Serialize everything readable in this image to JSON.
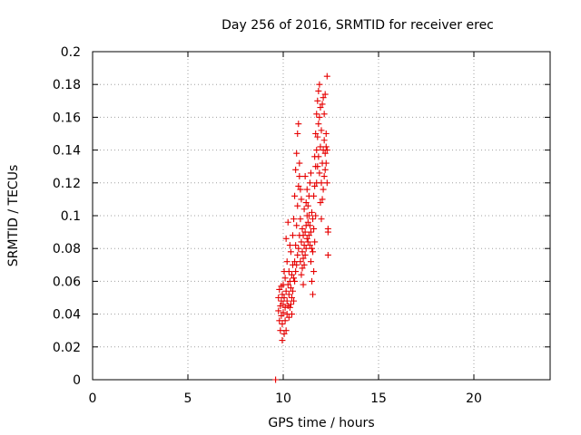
{
  "chart_data": {
    "type": "scatter",
    "title": "Day 256 of 2016, SRMTID for receiver erec",
    "xlabel": "GPS time / hours",
    "ylabel": "SRMTID / TECUs",
    "xlim": [
      0,
      24
    ],
    "ylim": [
      0,
      0.2
    ],
    "x_ticks": [
      "0",
      "5",
      "10",
      "15",
      "20"
    ],
    "y_ticks": [
      "0",
      "0.02",
      "0.04",
      "0.06",
      "0.08",
      "0.1",
      "0.12",
      "0.14",
      "0.16",
      "0.18",
      "0.2"
    ],
    "grid": true,
    "marker": "+",
    "color": "#e60000",
    "series": [
      {
        "points": [
          [
            9.6,
            0.0
          ],
          [
            9.75,
            0.042
          ],
          [
            9.75,
            0.05
          ],
          [
            9.8,
            0.036
          ],
          [
            9.8,
            0.055
          ],
          [
            9.85,
            0.045
          ],
          [
            9.85,
            0.03
          ],
          [
            9.9,
            0.039
          ],
          [
            9.9,
            0.048
          ],
          [
            9.9,
            0.057
          ],
          [
            9.95,
            0.034
          ],
          [
            9.95,
            0.052
          ],
          [
            9.95,
            0.024
          ],
          [
            10.0,
            0.041
          ],
          [
            10.0,
            0.046
          ],
          [
            10.0,
            0.058
          ],
          [
            10.05,
            0.028
          ],
          [
            10.05,
            0.05
          ],
          [
            10.05,
            0.066
          ],
          [
            10.1,
            0.036
          ],
          [
            10.1,
            0.044
          ],
          [
            10.1,
            0.062
          ],
          [
            10.15,
            0.03
          ],
          [
            10.15,
            0.054
          ],
          [
            10.15,
            0.086
          ],
          [
            10.2,
            0.04
          ],
          [
            10.2,
            0.048
          ],
          [
            10.2,
            0.072
          ],
          [
            10.25,
            0.058
          ],
          [
            10.25,
            0.045
          ],
          [
            10.25,
            0.096
          ],
          [
            10.3,
            0.038
          ],
          [
            10.3,
            0.052
          ],
          [
            10.3,
            0.066
          ],
          [
            10.35,
            0.06
          ],
          [
            10.35,
            0.044
          ],
          [
            10.35,
            0.082
          ],
          [
            10.4,
            0.046
          ],
          [
            10.4,
            0.056
          ],
          [
            10.4,
            0.078
          ],
          [
            10.45,
            0.05
          ],
          [
            10.45,
            0.064
          ],
          [
            10.45,
            0.04
          ],
          [
            10.5,
            0.054
          ],
          [
            10.5,
            0.07
          ],
          [
            10.5,
            0.088
          ],
          [
            10.55,
            0.048
          ],
          [
            10.55,
            0.062
          ],
          [
            10.55,
            0.098
          ],
          [
            10.6,
            0.06
          ],
          [
            10.6,
            0.072
          ],
          [
            10.6,
            0.112
          ],
          [
            10.65,
            0.066
          ],
          [
            10.65,
            0.082
          ],
          [
            10.65,
            0.128
          ],
          [
            10.7,
            0.07
          ],
          [
            10.7,
            0.094
          ],
          [
            10.7,
            0.138
          ],
          [
            10.75,
            0.076
          ],
          [
            10.75,
            0.106
          ],
          [
            10.75,
            0.15
          ],
          [
            10.8,
            0.08
          ],
          [
            10.8,
            0.118
          ],
          [
            10.8,
            0.156
          ],
          [
            10.85,
            0.088
          ],
          [
            10.85,
            0.124
          ],
          [
            10.85,
            0.132
          ],
          [
            10.9,
            0.072
          ],
          [
            10.9,
            0.098
          ],
          [
            10.9,
            0.116
          ],
          [
            10.95,
            0.064
          ],
          [
            10.95,
            0.084
          ],
          [
            10.95,
            0.11
          ],
          [
            11.0,
            0.068
          ],
          [
            11.0,
            0.078
          ],
          [
            11.0,
            0.092
          ],
          [
            11.05,
            0.058
          ],
          [
            11.05,
            0.074
          ],
          [
            11.05,
            0.088
          ],
          [
            11.1,
            0.07
          ],
          [
            11.1,
            0.082
          ],
          [
            11.1,
            0.104
          ],
          [
            11.15,
            0.076
          ],
          [
            11.15,
            0.09
          ],
          [
            11.15,
            0.124
          ],
          [
            11.2,
            0.08
          ],
          [
            11.2,
            0.094
          ],
          [
            11.2,
            0.108
          ],
          [
            11.25,
            0.086
          ],
          [
            11.25,
            0.1
          ],
          [
            11.25,
            0.116
          ],
          [
            11.3,
            0.084
          ],
          [
            11.3,
            0.096
          ],
          [
            11.3,
            0.106
          ],
          [
            11.35,
            0.088
          ],
          [
            11.35,
            0.1
          ],
          [
            11.35,
            0.112
          ],
          [
            11.4,
            0.082
          ],
          [
            11.4,
            0.094
          ],
          [
            11.4,
            0.12
          ],
          [
            11.45,
            0.072
          ],
          [
            11.45,
            0.09
          ],
          [
            11.45,
            0.126
          ],
          [
            11.5,
            0.06
          ],
          [
            11.5,
            0.08
          ],
          [
            11.5,
            0.102
          ],
          [
            11.55,
            0.052
          ],
          [
            11.55,
            0.078
          ],
          [
            11.55,
            0.098
          ],
          [
            11.6,
            0.066
          ],
          [
            11.6,
            0.092
          ],
          [
            11.6,
            0.112
          ],
          [
            11.65,
            0.084
          ],
          [
            11.65,
            0.118
          ],
          [
            11.65,
            0.136
          ],
          [
            11.7,
            0.1
          ],
          [
            11.7,
            0.13
          ],
          [
            11.7,
            0.15
          ],
          [
            11.75,
            0.12
          ],
          [
            11.75,
            0.14
          ],
          [
            11.75,
            0.162
          ],
          [
            11.8,
            0.13
          ],
          [
            11.8,
            0.148
          ],
          [
            11.8,
            0.17
          ],
          [
            11.85,
            0.136
          ],
          [
            11.85,
            0.156
          ],
          [
            11.85,
            0.176
          ],
          [
            11.9,
            0.126
          ],
          [
            11.9,
            0.16
          ],
          [
            11.9,
            0.18
          ],
          [
            11.95,
            0.108
          ],
          [
            11.95,
            0.142
          ],
          [
            11.95,
            0.166
          ],
          [
            12.0,
            0.098
          ],
          [
            12.0,
            0.12
          ],
          [
            12.0,
            0.152
          ],
          [
            12.05,
            0.11
          ],
          [
            12.05,
            0.132
          ],
          [
            12.05,
            0.168
          ],
          [
            12.1,
            0.116
          ],
          [
            12.1,
            0.14
          ],
          [
            12.1,
            0.172
          ],
          [
            12.15,
            0.124
          ],
          [
            12.15,
            0.146
          ],
          [
            12.15,
            0.162
          ],
          [
            12.2,
            0.128
          ],
          [
            12.2,
            0.138
          ],
          [
            12.2,
            0.174
          ],
          [
            12.25,
            0.132
          ],
          [
            12.25,
            0.15
          ],
          [
            12.25,
            0.142
          ],
          [
            12.3,
            0.14
          ],
          [
            12.3,
            0.185
          ],
          [
            12.3,
            0.12
          ],
          [
            12.35,
            0.076
          ],
          [
            12.35,
            0.092
          ],
          [
            12.35,
            0.09
          ]
        ]
      }
    ]
  }
}
